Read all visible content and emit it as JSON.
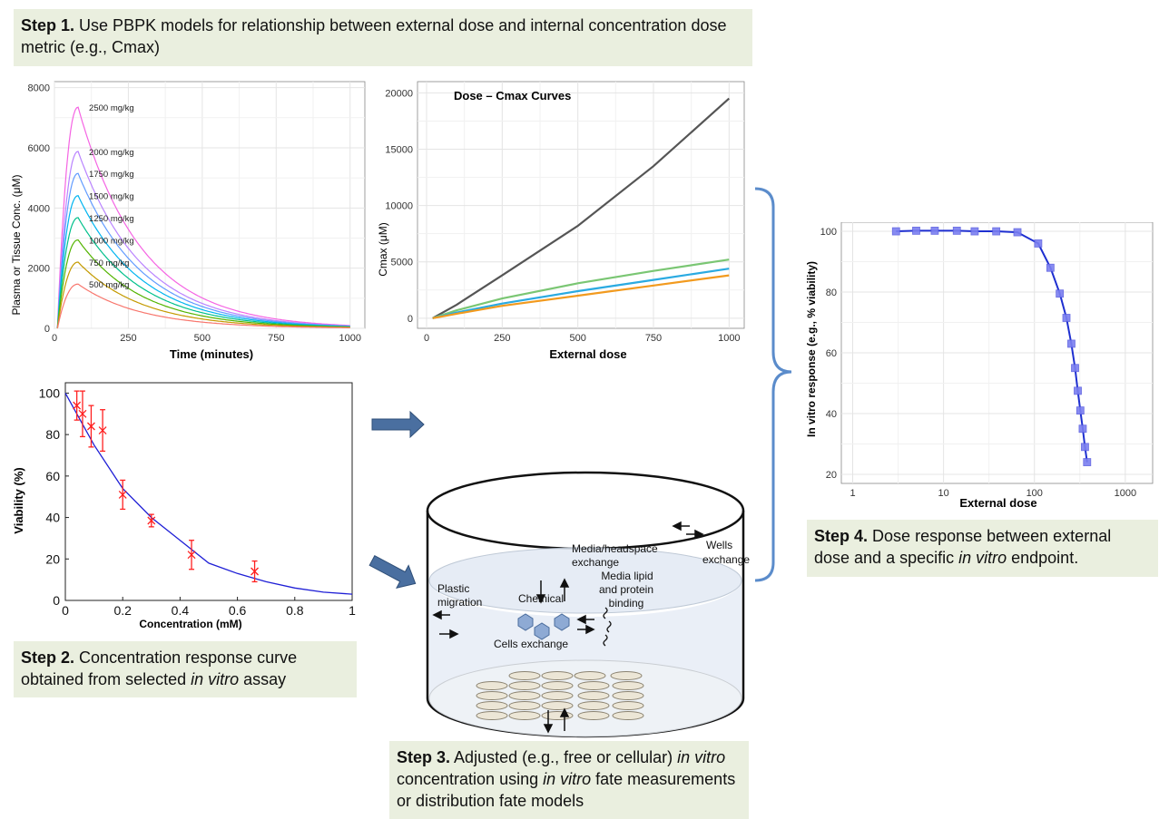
{
  "steps": {
    "step1": {
      "label": "Step 1.",
      "text": "Use PBPK models for relationship between external dose and internal concentration dose metric (e.g., Cmax)"
    },
    "step2": {
      "label": "Step 2.",
      "text_a": "Concentration response curve obtained from selected ",
      "italic": "in vitro",
      "text_b": " assay"
    },
    "step3": {
      "label": "Step 3.",
      "text_a": "Adjusted (e.g., free or cellular) ",
      "italic_a": "in vitro",
      "text_b": " concentration using ",
      "italic_b": "in vitro",
      "text_c": " fate measurements or distribution fate models"
    },
    "step4": {
      "label": "Step 4.",
      "text_a": "Dose response between external dose and a specific ",
      "italic": "in vitro",
      "text_b": " endpoint."
    }
  },
  "colors": {
    "step_bg": "#eaefdf",
    "arrow": "#3e6390",
    "brace": "#5b8ccb",
    "fit_line": "#1f1fd6",
    "error_marker": "#ff2020"
  },
  "chart_data": [
    {
      "id": "pbpk",
      "type": "line",
      "xlabel": "Time (minutes)",
      "ylabel": "Plasma or Tissue Conc. (μM)",
      "xlim": [
        0,
        1050
      ],
      "ylim": [
        0,
        8200
      ],
      "xticks": [
        0,
        250,
        500,
        750,
        1000
      ],
      "yticks": [
        0,
        2000,
        4000,
        6000,
        8000
      ],
      "grid": true,
      "tmax": 80,
      "series": [
        {
          "name": "2500 mg/kg",
          "peak": 7350,
          "end": 95,
          "color": "#f564e3"
        },
        {
          "name": "2000 mg/kg",
          "peak": 5880,
          "end": 80,
          "color": "#b983ff"
        },
        {
          "name": "1750 mg/kg",
          "peak": 5150,
          "end": 70,
          "color": "#619cff"
        },
        {
          "name": "1500 mg/kg",
          "peak": 4410,
          "end": 60,
          "color": "#00b4f0"
        },
        {
          "name": "1250 mg/kg",
          "peak": 3680,
          "end": 50,
          "color": "#00c08b"
        },
        {
          "name": "1000 mg/kg",
          "peak": 2940,
          "end": 40,
          "color": "#53b400"
        },
        {
          "name": "750 mg/kg",
          "peak": 2200,
          "end": 30,
          "color": "#c49a00"
        },
        {
          "name": "500 mg/kg",
          "peak": 1470,
          "end": 20,
          "color": "#f8766d"
        }
      ]
    },
    {
      "id": "cmax",
      "type": "line",
      "title": "Dose – Cmax Curves",
      "xlabel": "External dose",
      "ylabel": "Cmax (μM)",
      "xlim": [
        -30,
        1050
      ],
      "ylim": [
        -900,
        21000
      ],
      "xticks": [
        0,
        250,
        500,
        750,
        1000
      ],
      "yticks": [
        0,
        5000,
        10000,
        15000,
        20000
      ],
      "grid": true,
      "series": [
        {
          "color": "#555555",
          "x": [
            20,
            100,
            250,
            500,
            750,
            1000
          ],
          "y": [
            0,
            1200,
            3800,
            8200,
            13500,
            19500
          ]
        },
        {
          "color": "#7ac673",
          "x": [
            20,
            100,
            250,
            500,
            750,
            1000
          ],
          "y": [
            0,
            700,
            1750,
            3100,
            4200,
            5200
          ]
        },
        {
          "color": "#2aaae1",
          "x": [
            20,
            100,
            250,
            500,
            750,
            1000
          ],
          "y": [
            0,
            500,
            1300,
            2400,
            3400,
            4400
          ]
        },
        {
          "color": "#f29a1e",
          "x": [
            20,
            100,
            250,
            500,
            750,
            1000
          ],
          "y": [
            0,
            400,
            1100,
            2000,
            2900,
            3800
          ]
        }
      ]
    },
    {
      "id": "viability",
      "type": "scatter",
      "xlabel": "Concentration (mM)",
      "ylabel": "Viability (%)",
      "xlim": [
        0,
        1
      ],
      "ylim": [
        0,
        105
      ],
      "xticks": [
        0,
        0.2,
        0.4,
        0.6,
        0.8,
        1
      ],
      "yticks": [
        0,
        20,
        40,
        60,
        80,
        100
      ],
      "points": [
        {
          "x": 0.04,
          "y": 94,
          "err": 7
        },
        {
          "x": 0.06,
          "y": 90,
          "err": 11
        },
        {
          "x": 0.09,
          "y": 84,
          "err": 10
        },
        {
          "x": 0.13,
          "y": 82,
          "err": 10
        },
        {
          "x": 0.2,
          "y": 51,
          "err": 7
        },
        {
          "x": 0.3,
          "y": 38.5,
          "err": 3
        },
        {
          "x": 0.44,
          "y": 22,
          "err": 7
        },
        {
          "x": 0.66,
          "y": 14,
          "err": 5
        }
      ],
      "fit": {
        "x": [
          0,
          0.1,
          0.2,
          0.3,
          0.4,
          0.5,
          0.6,
          0.7,
          0.8,
          0.9,
          1.0
        ],
        "y": [
          100,
          75,
          54,
          40,
          29,
          18,
          13,
          9,
          6,
          4,
          3
        ]
      }
    },
    {
      "id": "invitro",
      "type": "line",
      "xlabel": "External dose",
      "ylabel": "In vitro response (e.g., % viability)",
      "xscale": "log",
      "xlim": [
        0.75,
        2000
      ],
      "ylim": [
        17,
        103
      ],
      "xticks": [
        1,
        10,
        100,
        1000
      ],
      "yticks": [
        20,
        40,
        60,
        80,
        100
      ],
      "grid": true,
      "x": [
        3,
        5,
        8,
        14,
        22,
        38,
        65,
        110,
        150,
        190,
        225,
        255,
        280,
        300,
        320,
        340,
        360,
        380
      ],
      "y": [
        100,
        100.2,
        100.2,
        100.2,
        100,
        100,
        99.7,
        96,
        88,
        79.5,
        71.5,
        63,
        55,
        47.5,
        41,
        35,
        29,
        24
      ]
    }
  ],
  "diagram": {
    "labels": {
      "media_headspace": [
        "Media/headspace",
        "exchange"
      ],
      "wells": [
        "Wells",
        "exchange"
      ],
      "plastic": [
        "Plastic",
        "migration"
      ],
      "chemical": "Chemical",
      "media_lipid": [
        "Media lipid",
        "and protein",
        "binding"
      ],
      "cells": "Cells exchange"
    }
  }
}
